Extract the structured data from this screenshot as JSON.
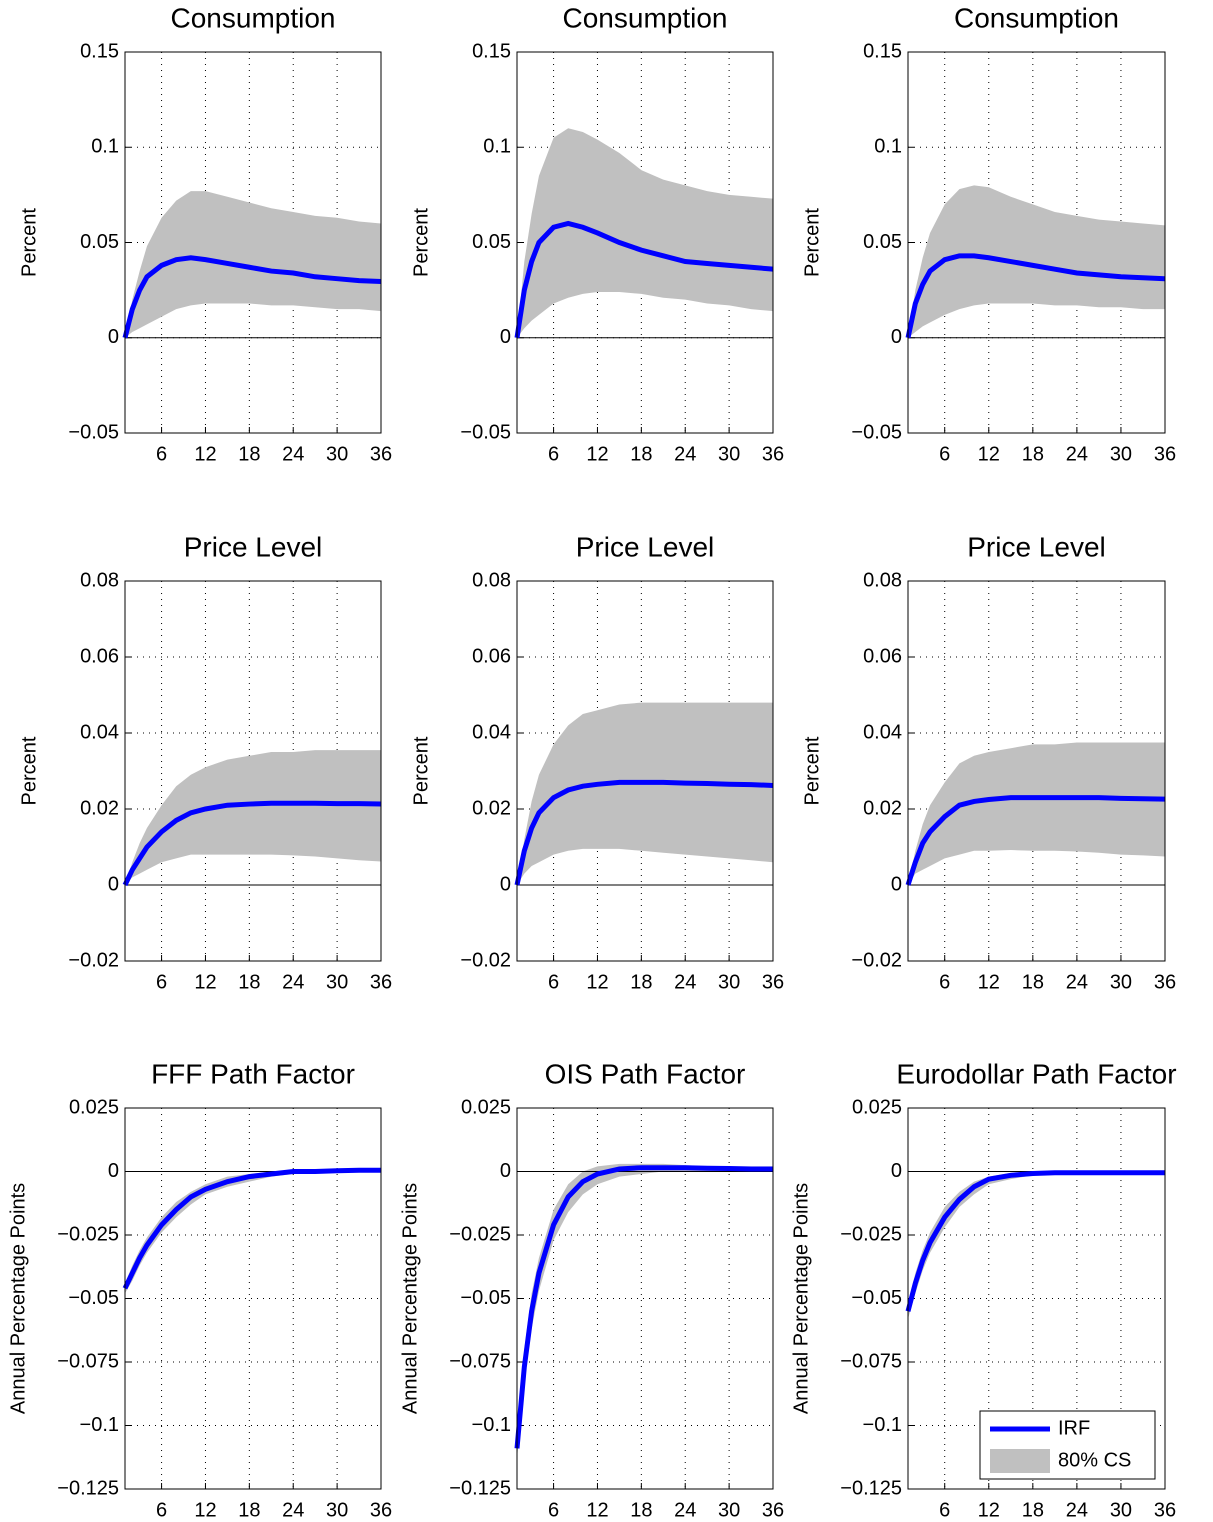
{
  "chart_data": [
    {
      "type": "band-line",
      "title": "Consumption",
      "ylabel": "Percent",
      "x": [
        1,
        2,
        3,
        4,
        6,
        8,
        10,
        12,
        15,
        18,
        21,
        24,
        27,
        30,
        33,
        36
      ],
      "xlim": [
        1,
        36
      ],
      "xticks": [
        6,
        12,
        18,
        24,
        30,
        36
      ],
      "ylim": [
        -0.05,
        0.15
      ],
      "yticks": [
        {
          "value": -0.05,
          "label": "−0.05"
        },
        0,
        0.05,
        0.1,
        0.15
      ],
      "grid": true,
      "series": [
        {
          "color": "#0000ff",
          "values": [
            0,
            0.015,
            0.025,
            0.032,
            0.038,
            0.041,
            0.042,
            0.041,
            0.039,
            0.037,
            0.035,
            0.034,
            0.032,
            0.031,
            0.03,
            0.0295
          ]
        },
        {
          "color": "#c0c0c0",
          "upper": [
            0,
            0.02,
            0.035,
            0.048,
            0.063,
            0.072,
            0.077,
            0.077,
            0.074,
            0.071,
            0.068,
            0.066,
            0.064,
            0.063,
            0.061,
            0.06
          ],
          "lower": [
            0,
            0.003,
            0.005,
            0.007,
            0.011,
            0.015,
            0.017,
            0.018,
            0.018,
            0.018,
            0.017,
            0.017,
            0.016,
            0.015,
            0.015,
            0.014
          ]
        }
      ]
    },
    {
      "type": "band-line",
      "title": "Consumption",
      "ylabel": "Percent",
      "x": [
        1,
        2,
        3,
        4,
        6,
        8,
        10,
        12,
        15,
        18,
        21,
        24,
        27,
        30,
        33,
        36
      ],
      "xlim": [
        1,
        36
      ],
      "xticks": [
        6,
        12,
        18,
        24,
        30,
        36
      ],
      "ylim": [
        -0.05,
        0.15
      ],
      "yticks": [
        {
          "value": -0.05,
          "label": "−0.05"
        },
        0,
        0.05,
        0.1,
        0.15
      ],
      "grid": true,
      "series": [
        {
          "color": "#0000ff",
          "values": [
            0,
            0.025,
            0.04,
            0.05,
            0.058,
            0.06,
            0.058,
            0.055,
            0.05,
            0.046,
            0.043,
            0.04,
            0.039,
            0.038,
            0.037,
            0.036
          ]
        },
        {
          "color": "#c0c0c0",
          "upper": [
            0,
            0.04,
            0.065,
            0.085,
            0.105,
            0.11,
            0.108,
            0.104,
            0.097,
            0.088,
            0.083,
            0.08,
            0.077,
            0.075,
            0.074,
            0.073
          ],
          "lower": [
            0,
            0.005,
            0.009,
            0.012,
            0.018,
            0.021,
            0.023,
            0.024,
            0.024,
            0.023,
            0.021,
            0.02,
            0.018,
            0.017,
            0.015,
            0.014
          ]
        }
      ]
    },
    {
      "type": "band-line",
      "title": "Consumption",
      "ylabel": "Percent",
      "x": [
        1,
        2,
        3,
        4,
        6,
        8,
        10,
        12,
        15,
        18,
        21,
        24,
        27,
        30,
        33,
        36
      ],
      "xlim": [
        1,
        36
      ],
      "xticks": [
        6,
        12,
        18,
        24,
        30,
        36
      ],
      "ylim": [
        -0.05,
        0.15
      ],
      "yticks": [
        {
          "value": -0.05,
          "label": "−0.05"
        },
        0,
        0.05,
        0.1,
        0.15
      ],
      "grid": true,
      "series": [
        {
          "color": "#0000ff",
          "values": [
            0,
            0.018,
            0.028,
            0.035,
            0.041,
            0.043,
            0.043,
            0.042,
            0.04,
            0.038,
            0.036,
            0.034,
            0.033,
            0.032,
            0.0315,
            0.031
          ]
        },
        {
          "color": "#c0c0c0",
          "upper": [
            0,
            0.025,
            0.042,
            0.055,
            0.07,
            0.078,
            0.08,
            0.079,
            0.074,
            0.07,
            0.066,
            0.064,
            0.062,
            0.061,
            0.06,
            0.059
          ],
          "lower": [
            0,
            0.003,
            0.006,
            0.008,
            0.012,
            0.015,
            0.017,
            0.018,
            0.018,
            0.018,
            0.017,
            0.017,
            0.016,
            0.016,
            0.015,
            0.015
          ]
        }
      ]
    },
    {
      "type": "band-line",
      "title": "Price Level",
      "ylabel": "Percent",
      "x": [
        1,
        2,
        3,
        4,
        6,
        8,
        10,
        12,
        15,
        18,
        21,
        24,
        27,
        30,
        33,
        36
      ],
      "xlim": [
        1,
        36
      ],
      "xticks": [
        6,
        12,
        18,
        24,
        30,
        36
      ],
      "ylim": [
        -0.02,
        0.08
      ],
      "yticks": [
        {
          "value": -0.02,
          "label": "−0.02"
        },
        0,
        0.02,
        0.04,
        0.06,
        0.08
      ],
      "grid": true,
      "series": [
        {
          "color": "#0000ff",
          "values": [
            0,
            0.004,
            0.007,
            0.01,
            0.014,
            0.017,
            0.019,
            0.02,
            0.021,
            0.0213,
            0.0215,
            0.0215,
            0.0215,
            0.0214,
            0.0214,
            0.0213
          ]
        },
        {
          "color": "#c0c0c0",
          "upper": [
            0,
            0.006,
            0.011,
            0.015,
            0.021,
            0.026,
            0.029,
            0.031,
            0.033,
            0.034,
            0.035,
            0.035,
            0.0355,
            0.0355,
            0.0355,
            0.0355
          ],
          "lower": [
            0,
            0.002,
            0.003,
            0.004,
            0.006,
            0.007,
            0.008,
            0.008,
            0.008,
            0.008,
            0.008,
            0.0078,
            0.0075,
            0.007,
            0.0065,
            0.0062
          ]
        }
      ]
    },
    {
      "type": "band-line",
      "title": "Price Level",
      "ylabel": "Percent",
      "x": [
        1,
        2,
        3,
        4,
        6,
        8,
        10,
        12,
        15,
        18,
        21,
        24,
        27,
        30,
        33,
        36
      ],
      "xlim": [
        1,
        36
      ],
      "xticks": [
        6,
        12,
        18,
        24,
        30,
        36
      ],
      "ylim": [
        -0.02,
        0.08
      ],
      "yticks": [
        {
          "value": -0.02,
          "label": "−0.02"
        },
        0,
        0.02,
        0.04,
        0.06,
        0.08
      ],
      "grid": true,
      "series": [
        {
          "color": "#0000ff",
          "values": [
            0,
            0.009,
            0.015,
            0.019,
            0.023,
            0.025,
            0.026,
            0.0265,
            0.027,
            0.027,
            0.027,
            0.0268,
            0.0267,
            0.0265,
            0.0264,
            0.0262
          ]
        },
        {
          "color": "#c0c0c0",
          "upper": [
            0,
            0.012,
            0.022,
            0.029,
            0.037,
            0.042,
            0.045,
            0.046,
            0.0475,
            0.048,
            0.048,
            0.048,
            0.048,
            0.048,
            0.048,
            0.048
          ],
          "lower": [
            0,
            0.003,
            0.005,
            0.006,
            0.008,
            0.009,
            0.0095,
            0.0095,
            0.0095,
            0.009,
            0.0085,
            0.008,
            0.0075,
            0.007,
            0.0065,
            0.006
          ]
        }
      ]
    },
    {
      "type": "band-line",
      "title": "Price Level",
      "ylabel": "Percent",
      "x": [
        1,
        2,
        3,
        4,
        6,
        8,
        10,
        12,
        15,
        18,
        21,
        24,
        27,
        30,
        33,
        36
      ],
      "xlim": [
        1,
        36
      ],
      "xticks": [
        6,
        12,
        18,
        24,
        30,
        36
      ],
      "ylim": [
        -0.02,
        0.08
      ],
      "yticks": [
        {
          "value": -0.02,
          "label": "−0.02"
        },
        0,
        0.02,
        0.04,
        0.06,
        0.08
      ],
      "grid": true,
      "series": [
        {
          "color": "#0000ff",
          "values": [
            0,
            0.006,
            0.011,
            0.014,
            0.018,
            0.021,
            0.022,
            0.0225,
            0.023,
            0.023,
            0.023,
            0.023,
            0.023,
            0.0228,
            0.0227,
            0.0226
          ]
        },
        {
          "color": "#c0c0c0",
          "upper": [
            0,
            0.009,
            0.016,
            0.021,
            0.027,
            0.032,
            0.034,
            0.035,
            0.036,
            0.037,
            0.037,
            0.0375,
            0.0375,
            0.0375,
            0.0375,
            0.0375
          ],
          "lower": [
            0,
            0.003,
            0.004,
            0.005,
            0.007,
            0.008,
            0.009,
            0.009,
            0.0092,
            0.009,
            0.009,
            0.0088,
            0.0085,
            0.008,
            0.0078,
            0.0075
          ]
        }
      ]
    },
    {
      "type": "band-line",
      "title": "FFF Path Factor",
      "ylabel": "Annual Percentage Points",
      "x": [
        1,
        2,
        3,
        4,
        6,
        8,
        10,
        12,
        15,
        18,
        21,
        24,
        27,
        30,
        33,
        36
      ],
      "xlim": [
        1,
        36
      ],
      "xticks": [
        6,
        12,
        18,
        24,
        30,
        36
      ],
      "ylim": [
        -0.125,
        0.025
      ],
      "yticks": [
        {
          "value": -0.125,
          "label": "−0.125"
        },
        {
          "value": -0.1,
          "label": "−0.1"
        },
        {
          "value": -0.075,
          "label": "−0.075"
        },
        {
          "value": -0.05,
          "label": "−0.05"
        },
        {
          "value": -0.025,
          "label": "−0.025"
        },
        0,
        0.025
      ],
      "grid": true,
      "series": [
        {
          "color": "#0000ff",
          "values": [
            -0.046,
            -0.04,
            -0.034,
            -0.029,
            -0.021,
            -0.015,
            -0.01,
            -0.007,
            -0.004,
            -0.002,
            -0.001,
            0,
            0,
            0.0003,
            0.0005,
            0.0005
          ]
        },
        {
          "color": "#c0c0c0",
          "upper": [
            -0.044,
            -0.037,
            -0.031,
            -0.026,
            -0.018,
            -0.012,
            -0.008,
            -0.005,
            -0.002,
            -0.001,
            0,
            0.0005,
            0.0008,
            0.001,
            0.001,
            0.001
          ],
          "lower": [
            -0.048,
            -0.043,
            -0.037,
            -0.032,
            -0.024,
            -0.018,
            -0.013,
            -0.009,
            -0.006,
            -0.004,
            -0.002,
            -0.001,
            -0.0005,
            0,
            0,
            0
          ]
        }
      ]
    },
    {
      "type": "band-line",
      "title": "OIS Path Factor",
      "ylabel": "Annual Percentage Points",
      "x": [
        1,
        2,
        3,
        4,
        6,
        8,
        10,
        12,
        15,
        18,
        21,
        24,
        27,
        30,
        33,
        36
      ],
      "xlim": [
        1,
        36
      ],
      "xticks": [
        6,
        12,
        18,
        24,
        30,
        36
      ],
      "ylim": [
        -0.125,
        0.025
      ],
      "yticks": [
        {
          "value": -0.125,
          "label": "−0.125"
        },
        {
          "value": -0.1,
          "label": "−0.1"
        },
        {
          "value": -0.075,
          "label": "−0.075"
        },
        {
          "value": -0.05,
          "label": "−0.05"
        },
        {
          "value": -0.025,
          "label": "−0.025"
        },
        0,
        0.025
      ],
      "grid": true,
      "series": [
        {
          "color": "#0000ff",
          "values": [
            -0.109,
            -0.077,
            -0.055,
            -0.04,
            -0.021,
            -0.01,
            -0.004,
            -0.001,
            0.001,
            0.0015,
            0.0015,
            0.0015,
            0.0013,
            0.0012,
            0.001,
            0.001
          ]
        },
        {
          "color": "#c0c0c0",
          "upper": [
            -0.105,
            -0.07,
            -0.048,
            -0.034,
            -0.015,
            -0.005,
            0,
            0.002,
            0.003,
            0.003,
            0.003,
            0.0025,
            0.002,
            0.002,
            0.002,
            0.002
          ],
          "lower": [
            -0.113,
            -0.083,
            -0.062,
            -0.047,
            -0.027,
            -0.016,
            -0.009,
            -0.005,
            -0.002,
            -0.001,
            0,
            0,
            0,
            0,
            0,
            0
          ]
        }
      ]
    },
    {
      "type": "band-line",
      "title": "Eurodollar Path Factor",
      "ylabel": "Annual Percentage Points",
      "x": [
        1,
        2,
        3,
        4,
        6,
        8,
        10,
        12,
        15,
        18,
        21,
        24,
        27,
        30,
        33,
        36
      ],
      "xlim": [
        1,
        36
      ],
      "xticks": [
        6,
        12,
        18,
        24,
        30,
        36
      ],
      "ylim": [
        -0.125,
        0.025
      ],
      "yticks": [
        {
          "value": -0.125,
          "label": "−0.125"
        },
        {
          "value": -0.1,
          "label": "−0.1"
        },
        {
          "value": -0.075,
          "label": "−0.075"
        },
        {
          "value": -0.05,
          "label": "−0.05"
        },
        {
          "value": -0.025,
          "label": "−0.025"
        },
        0,
        0.025
      ],
      "grid": true,
      "legend": "lower right",
      "series": [
        {
          "name": "IRF",
          "color": "#0000ff",
          "values": [
            -0.055,
            -0.044,
            -0.035,
            -0.028,
            -0.018,
            -0.011,
            -0.006,
            -0.003,
            -0.0015,
            -0.0008,
            -0.0005,
            -0.0005,
            -0.0005,
            -0.0005,
            -0.0005,
            -0.0005
          ]
        },
        {
          "name": "80% CS",
          "color": "#c0c0c0",
          "upper": [
            -0.052,
            -0.04,
            -0.031,
            -0.024,
            -0.014,
            -0.008,
            -0.004,
            -0.002,
            -0.0005,
            0,
            0,
            0,
            0,
            0,
            0,
            0
          ],
          "lower": [
            -0.058,
            -0.048,
            -0.039,
            -0.032,
            -0.022,
            -0.014,
            -0.009,
            -0.005,
            -0.003,
            -0.0015,
            -0.001,
            -0.001,
            -0.001,
            -0.001,
            -0.001,
            -0.001
          ]
        }
      ]
    }
  ]
}
